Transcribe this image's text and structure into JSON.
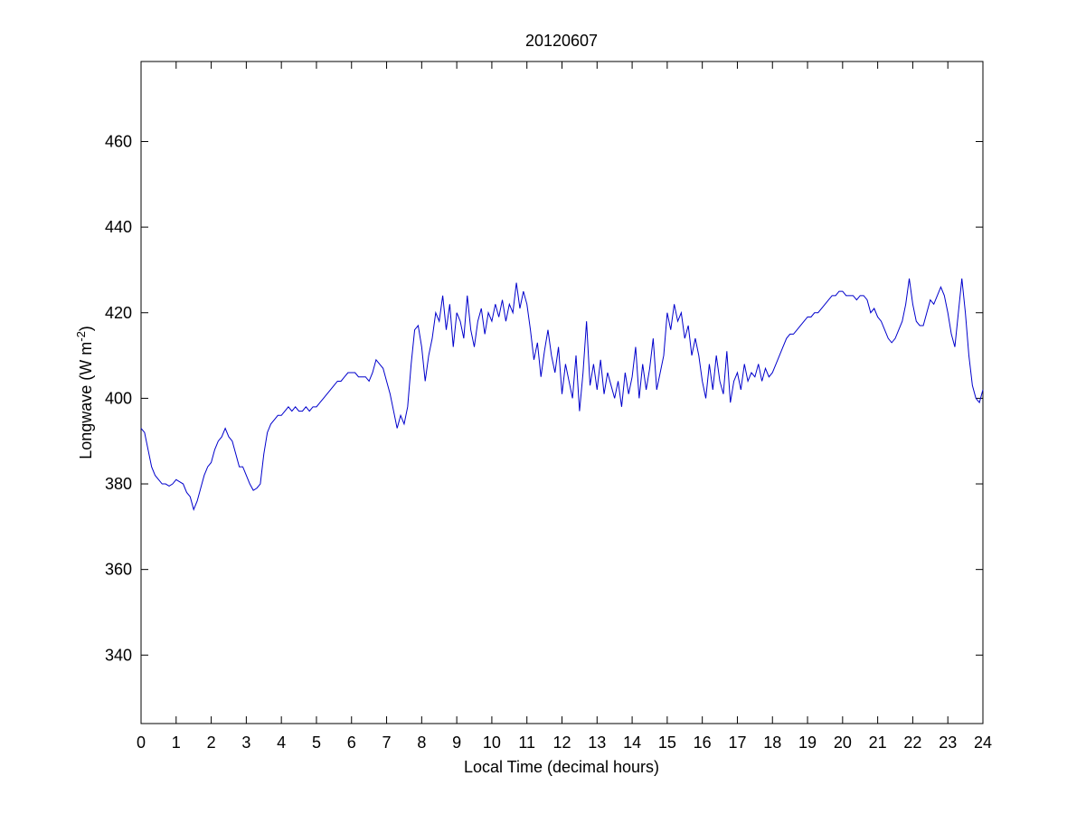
{
  "chart_data": {
    "type": "line",
    "title": "20120607",
    "xlabel": "Local Time (decimal hours)",
    "ylabel": [
      "Longwave (W m",
      "-2",
      ")"
    ],
    "xlim": [
      0,
      24
    ],
    "ylim": [
      324,
      478.7
    ],
    "xticks": [
      0,
      1,
      2,
      3,
      4,
      5,
      6,
      7,
      8,
      9,
      10,
      11,
      12,
      13,
      14,
      15,
      16,
      17,
      18,
      19,
      20,
      21,
      22,
      23,
      24
    ],
    "yticks": [
      340,
      360,
      380,
      400,
      420,
      440,
      460
    ],
    "grid": false,
    "x": [
      0,
      0.1,
      0.2,
      0.3,
      0.4,
      0.5,
      0.6,
      0.7,
      0.8,
      0.9,
      1,
      1.1,
      1.2,
      1.3,
      1.4,
      1.5,
      1.6,
      1.7,
      1.8,
      1.9,
      2,
      2.1,
      2.2,
      2.3,
      2.4,
      2.5,
      2.6,
      2.7,
      2.8,
      2.9,
      3,
      3.1,
      3.2,
      3.3,
      3.4,
      3.5,
      3.6,
      3.7,
      3.8,
      3.9,
      4,
      4.1,
      4.2,
      4.3,
      4.4,
      4.5,
      4.6,
      4.7,
      4.8,
      4.9,
      5,
      5.1,
      5.2,
      5.3,
      5.4,
      5.5,
      5.6,
      5.7,
      5.8,
      5.9,
      6,
      6.1,
      6.2,
      6.3,
      6.4,
      6.5,
      6.6,
      6.7,
      6.8,
      6.9,
      7,
      7.1,
      7.2,
      7.3,
      7.4,
      7.5,
      7.6,
      7.7,
      7.8,
      7.9,
      8,
      8.1,
      8.2,
      8.3,
      8.4,
      8.5,
      8.6,
      8.7,
      8.8,
      8.9,
      9,
      9.1,
      9.2,
      9.3,
      9.4,
      9.5,
      9.6,
      9.7,
      9.8,
      9.9,
      10,
      10.1,
      10.2,
      10.3,
      10.4,
      10.5,
      10.6,
      10.7,
      10.8,
      10.9,
      11,
      11.1,
      11.2,
      11.3,
      11.4,
      11.5,
      11.6,
      11.7,
      11.8,
      11.9,
      12,
      12.1,
      12.2,
      12.3,
      12.4,
      12.5,
      12.6,
      12.7,
      12.8,
      12.9,
      13,
      13.1,
      13.2,
      13.3,
      13.4,
      13.5,
      13.6,
      13.7,
      13.8,
      13.9,
      14,
      14.1,
      14.2,
      14.3,
      14.4,
      14.5,
      14.6,
      14.7,
      14.8,
      14.9,
      15,
      15.1,
      15.2,
      15.3,
      15.4,
      15.5,
      15.6,
      15.7,
      15.8,
      15.9,
      16,
      16.1,
      16.2,
      16.3,
      16.4,
      16.5,
      16.6,
      16.7,
      16.8,
      16.9,
      17,
      17.1,
      17.2,
      17.3,
      17.4,
      17.5,
      17.6,
      17.7,
      17.8,
      17.9,
      18,
      18.1,
      18.2,
      18.3,
      18.4,
      18.5,
      18.6,
      18.7,
      18.8,
      18.9,
      19,
      19.1,
      19.2,
      19.3,
      19.4,
      19.5,
      19.6,
      19.7,
      19.8,
      19.9,
      20,
      20.1,
      20.2,
      20.3,
      20.4,
      20.5,
      20.6,
      20.7,
      20.8,
      20.9,
      21,
      21.1,
      21.2,
      21.3,
      21.4,
      21.5,
      21.6,
      21.7,
      21.8,
      21.9,
      22,
      22.1,
      22.2,
      22.3,
      22.4,
      22.5,
      22.6,
      22.7,
      22.8,
      22.9,
      23,
      23.1,
      23.2,
      23.3,
      23.4,
      23.5,
      23.6,
      23.7,
      23.8,
      23.9,
      24
    ],
    "series": [
      {
        "color": "#0000cc",
        "values": [
          393,
          392,
          388,
          384,
          382,
          381,
          380,
          380,
          379.5,
          380,
          381,
          380.5,
          380,
          378,
          377,
          374,
          376,
          379,
          382,
          384,
          385,
          388,
          390,
          391,
          393,
          391,
          390,
          387,
          384,
          384,
          382,
          380,
          378.5,
          379,
          380,
          387,
          392,
          394,
          395,
          396,
          396,
          397,
          398,
          397,
          398,
          397,
          397,
          398,
          397,
          398,
          398,
          399,
          400,
          401,
          402,
          403,
          404,
          404,
          405,
          406,
          406,
          406,
          405,
          405,
          405,
          404,
          406,
          409,
          408,
          407,
          404,
          401,
          397,
          393,
          396,
          394,
          398,
          408,
          416,
          417,
          412,
          404,
          410,
          414,
          420,
          418,
          424,
          416,
          422,
          412,
          420,
          418,
          414,
          424,
          416,
          412,
          418,
          421,
          415,
          420,
          418,
          422,
          419,
          423,
          418,
          422,
          420,
          427,
          421,
          425,
          422,
          416,
          409,
          413,
          405,
          411,
          416,
          410,
          406,
          412,
          401,
          408,
          404,
          400,
          410,
          397,
          406,
          418,
          403,
          408,
          402,
          409,
          401,
          406,
          403,
          400,
          404,
          398,
          406,
          401,
          405,
          412,
          400,
          408,
          402,
          407,
          414,
          402,
          406,
          410,
          420,
          416,
          422,
          418,
          420,
          414,
          417,
          410,
          414,
          410,
          404,
          400,
          408,
          402,
          410,
          404,
          401,
          411,
          399,
          404,
          406,
          402,
          408,
          404,
          406,
          405,
          408,
          404,
          407,
          405,
          406,
          408,
          410,
          412,
          414,
          415,
          415,
          416,
          417,
          418,
          419,
          419,
          420,
          420,
          421,
          422,
          423,
          424,
          424,
          425,
          425,
          424,
          424,
          424,
          423,
          424,
          424,
          423,
          420,
          421,
          419,
          418,
          416,
          414,
          413,
          414,
          416,
          418,
          422,
          428,
          422,
          418,
          417,
          417,
          420,
          423,
          422,
          424,
          426,
          424,
          420,
          415,
          412,
          420,
          428,
          420,
          410,
          403,
          400,
          399,
          402
        ]
      }
    ]
  }
}
